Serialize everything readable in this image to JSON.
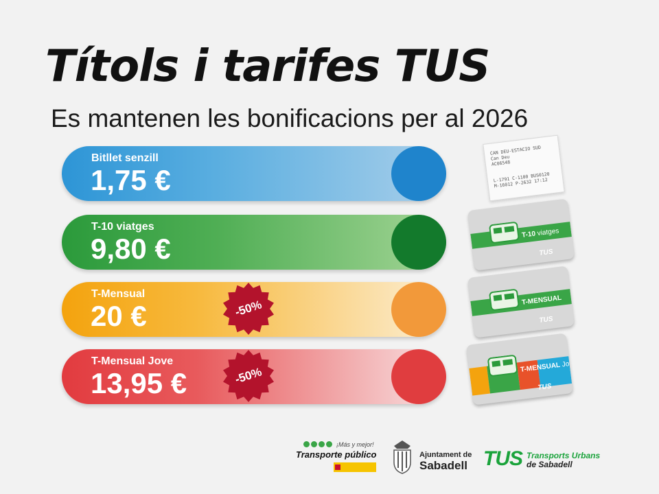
{
  "header": {
    "title": "Títols i tarifes TUS",
    "subtitle": "Es mantenen les bonificacions per al 2026"
  },
  "tariffs": [
    {
      "name": "Bitllet senzill",
      "price": "1,75 €"
    },
    {
      "name": "T-10 viatges",
      "price": "9,80 €"
    },
    {
      "name": "T-Mensual",
      "price": "20 €",
      "discount": "-50%"
    },
    {
      "name": "T-Mensual Jove",
      "price": "13,95 €",
      "discount": "-50%"
    }
  ],
  "ticket": {
    "line1": "CAN DEU-ESTACIO SUD",
    "line2": "Can Deu",
    "line3": "AC06548",
    "line4": "L-1791  C-1100  BUS0120",
    "line5": "M-16012 P-2632 17:12"
  },
  "cards": [
    {
      "label_pre": "T-10",
      "label_post": " viatges",
      "brand": "TUS"
    },
    {
      "label_pre": "T-MENSUAL",
      "label_post": "",
      "brand": "TUS"
    },
    {
      "label_pre": "T-MENSUAL",
      "label_post": " Jove",
      "brand": "TUS"
    }
  ],
  "footer": {
    "mas_mejor": "¡Más y mejor!",
    "transporte": "Transporte público",
    "ajuntament_line1": "Ajuntament de",
    "ajuntament_line2": "Sabadell",
    "tus_logo": "TUS",
    "tus_name1": "Transports Urbans",
    "tus_name2": "de Sabadell"
  },
  "colors": {
    "blue": "#2d95d6",
    "green": "#2b9a3b",
    "orange": "#f4a30e",
    "red": "#e23b3f",
    "badge": "#b3132c"
  }
}
